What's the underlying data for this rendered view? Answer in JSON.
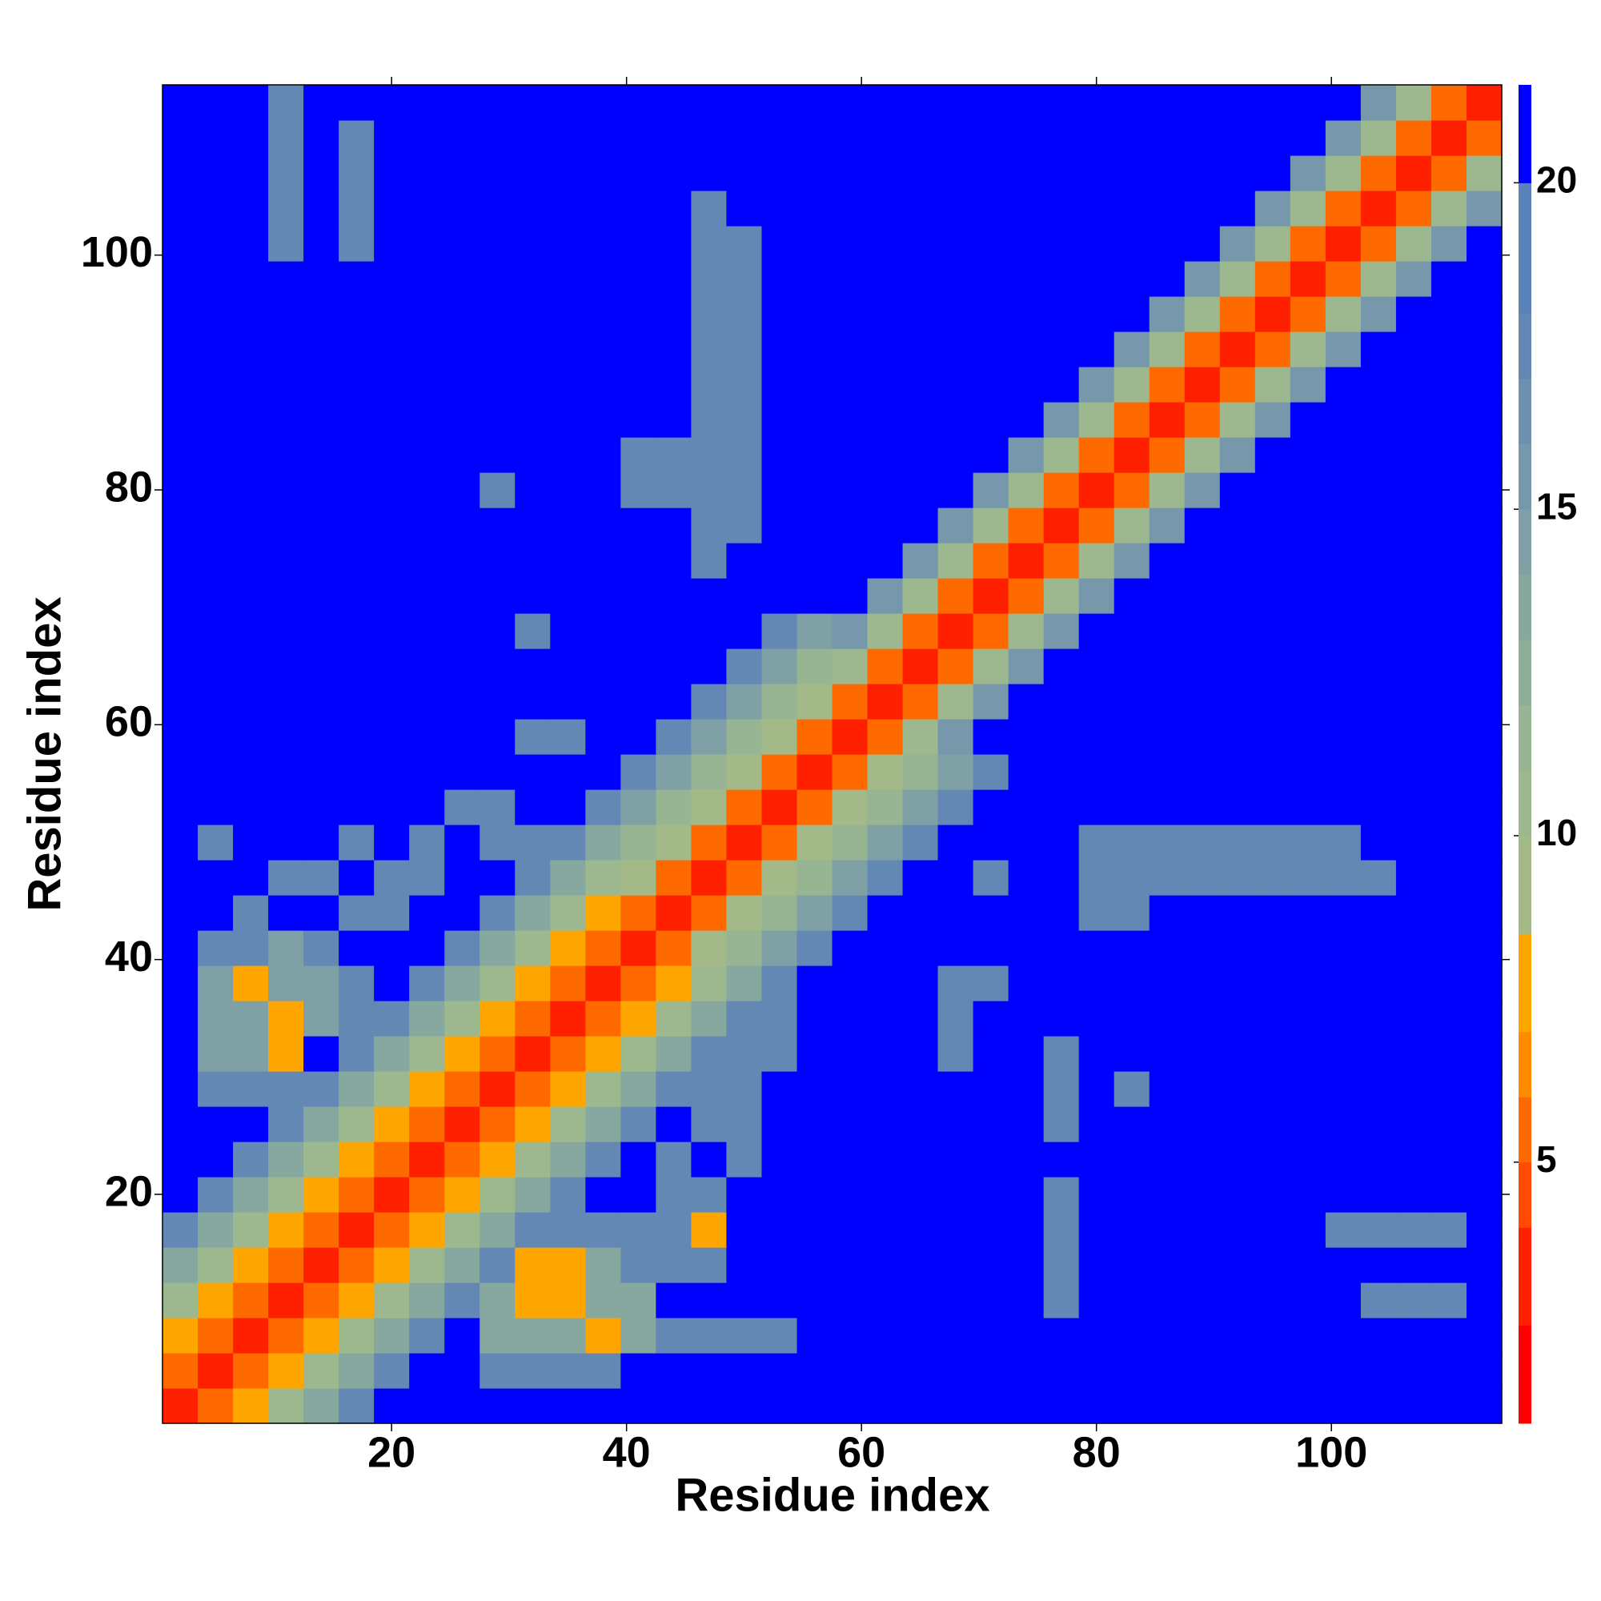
{
  "chart_data": {
    "type": "heatmap",
    "x_label": "Residue index",
    "y_label": "Residue index",
    "xlim": [
      0.5,
      114.5
    ],
    "ylim": [
      0.5,
      114.5
    ],
    "xticks": [
      20,
      40,
      60,
      80,
      100
    ],
    "yticks": [
      20,
      40,
      60,
      80,
      100
    ],
    "zlim": [
      1,
      21.5
    ],
    "colorbar_ticks": [
      5,
      10,
      15,
      20
    ],
    "colorscale": [
      [
        2.5,
        "#ff0000"
      ],
      [
        4,
        "#ff2000"
      ],
      [
        5,
        "#ff4a00"
      ],
      [
        6,
        "#ff6a00"
      ],
      [
        7,
        "#ff8c00"
      ],
      [
        8.5,
        "#ffa500"
      ],
      [
        10,
        "#a3ba88"
      ],
      [
        11,
        "#9db88e"
      ],
      [
        12,
        "#97b493"
      ],
      [
        13,
        "#8fae99"
      ],
      [
        14,
        "#87a89e"
      ],
      [
        15,
        "#7fa0a4"
      ],
      [
        16,
        "#7798aa"
      ],
      [
        17,
        "#6e90b0"
      ],
      [
        18,
        "#6488b4"
      ],
      [
        20,
        "#5a82b8"
      ],
      [
        21.5,
        "#0000ff"
      ]
    ],
    "x": [
      2,
      5,
      8,
      11,
      14,
      17,
      20,
      23,
      26,
      29,
      32,
      35,
      38,
      41,
      44,
      47,
      50,
      53,
      56,
      59,
      62,
      65,
      68,
      71,
      74,
      77,
      80,
      83,
      86,
      89,
      92,
      95,
      98,
      101,
      104,
      107,
      110,
      113
    ],
    "y": [
      2,
      5,
      8,
      11,
      14,
      17,
      20,
      23,
      26,
      29,
      32,
      35,
      38,
      41,
      44,
      47,
      50,
      53,
      56,
      59,
      62,
      65,
      68,
      71,
      74,
      77,
      80,
      83,
      86,
      89,
      92,
      95,
      98,
      101,
      104,
      107,
      110,
      113
    ],
    "z": [
      [
        3,
        6,
        8,
        11,
        14,
        18,
        21,
        21,
        21,
        21,
        21,
        21,
        21,
        21,
        21,
        21,
        21,
        21,
        21,
        21,
        21,
        21,
        21,
        21,
        21,
        21,
        21,
        21,
        21,
        21,
        21,
        21,
        21,
        21,
        21,
        21,
        21,
        21
      ],
      [
        6,
        3,
        6,
        8,
        11,
        14,
        18,
        21,
        21,
        18,
        18,
        18,
        18,
        21,
        21,
        21,
        21,
        21,
        21,
        21,
        21,
        21,
        21,
        21,
        21,
        21,
        21,
        21,
        21,
        21,
        21,
        21,
        21,
        21,
        21,
        21,
        21,
        21
      ],
      [
        8,
        6,
        3,
        6,
        8,
        11,
        14,
        18,
        21,
        14,
        14,
        14,
        8,
        14,
        18,
        18,
        18,
        18,
        21,
        21,
        21,
        21,
        21,
        21,
        21,
        21,
        21,
        21,
        21,
        21,
        21,
        21,
        21,
        21,
        21,
        21,
        21,
        21
      ],
      [
        11,
        8,
        6,
        3,
        6,
        8,
        11,
        14,
        18,
        14,
        8,
        8,
        14,
        14,
        21,
        21,
        21,
        21,
        21,
        21,
        21,
        21,
        21,
        21,
        21,
        18,
        21,
        21,
        21,
        21,
        21,
        21,
        21,
        21,
        18,
        18,
        18,
        21
      ],
      [
        14,
        11,
        8,
        6,
        3,
        6,
        8,
        11,
        14,
        18,
        8,
        8,
        14,
        18,
        18,
        18,
        21,
        21,
        21,
        21,
        21,
        21,
        21,
        21,
        21,
        18,
        21,
        21,
        21,
        21,
        21,
        21,
        21,
        21,
        21,
        21,
        21,
        21
      ],
      [
        18,
        14,
        11,
        8,
        6,
        3,
        6,
        8,
        11,
        14,
        18,
        18,
        18,
        18,
        18,
        8,
        21,
        21,
        21,
        21,
        21,
        21,
        21,
        21,
        21,
        18,
        21,
        21,
        21,
        21,
        21,
        21,
        21,
        18,
        18,
        18,
        18,
        21
      ],
      [
        21,
        18,
        14,
        11,
        8,
        6,
        3,
        6,
        8,
        11,
        14,
        18,
        21,
        21,
        18,
        18,
        21,
        21,
        21,
        21,
        21,
        21,
        21,
        21,
        21,
        18,
        21,
        21,
        21,
        21,
        21,
        21,
        21,
        21,
        21,
        21,
        21,
        21
      ],
      [
        21,
        21,
        18,
        14,
        11,
        8,
        6,
        3,
        6,
        8,
        11,
        14,
        18,
        21,
        18,
        21,
        18,
        21,
        21,
        21,
        21,
        21,
        21,
        21,
        21,
        21,
        21,
        21,
        21,
        21,
        21,
        21,
        21,
        21,
        21,
        21,
        21,
        21
      ],
      [
        21,
        21,
        21,
        18,
        14,
        11,
        8,
        6,
        3,
        6,
        8,
        11,
        14,
        18,
        21,
        18,
        18,
        21,
        21,
        21,
        21,
        21,
        21,
        21,
        21,
        18,
        21,
        21,
        21,
        21,
        21,
        21,
        21,
        21,
        21,
        21,
        21,
        21
      ],
      [
        21,
        18,
        18,
        18,
        18,
        14,
        11,
        8,
        6,
        3,
        6,
        8,
        11,
        14,
        18,
        18,
        18,
        21,
        21,
        21,
        21,
        21,
        21,
        21,
        21,
        18,
        21,
        18,
        21,
        21,
        21,
        21,
        21,
        21,
        21,
        21,
        21,
        21
      ],
      [
        21,
        15,
        15,
        8,
        21,
        18,
        14,
        11,
        8,
        6,
        3,
        6,
        8,
        11,
        14,
        18,
        18,
        18,
        21,
        21,
        21,
        21,
        18,
        21,
        21,
        18,
        21,
        21,
        21,
        21,
        21,
        21,
        21,
        21,
        21,
        21,
        21,
        21
      ],
      [
        21,
        15,
        15,
        8,
        15,
        18,
        18,
        14,
        11,
        8,
        6,
        3,
        6,
        8,
        11,
        14,
        18,
        18,
        21,
        21,
        21,
        21,
        18,
        21,
        21,
        21,
        21,
        21,
        21,
        21,
        21,
        21,
        21,
        21,
        21,
        21,
        21,
        21
      ],
      [
        21,
        15,
        8,
        15,
        15,
        18,
        21,
        18,
        14,
        11,
        8,
        6,
        3,
        6,
        8,
        11,
        14,
        18,
        21,
        21,
        21,
        21,
        18,
        18,
        21,
        21,
        21,
        21,
        21,
        21,
        21,
        21,
        21,
        21,
        21,
        21,
        21,
        21
      ],
      [
        21,
        18,
        18,
        15,
        18,
        21,
        21,
        21,
        18,
        14,
        11,
        8,
        6,
        3,
        6,
        10,
        12,
        15,
        18,
        21,
        21,
        21,
        21,
        21,
        21,
        21,
        21,
        21,
        21,
        21,
        21,
        21,
        21,
        21,
        21,
        21,
        21,
        21
      ],
      [
        21,
        21,
        18,
        21,
        21,
        18,
        18,
        21,
        21,
        18,
        14,
        11,
        8,
        6,
        3,
        6,
        10,
        12,
        15,
        18,
        21,
        21,
        21,
        21,
        21,
        21,
        18,
        18,
        21,
        21,
        21,
        21,
        21,
        21,
        21,
        21,
        21,
        21
      ],
      [
        21,
        21,
        21,
        18,
        18,
        21,
        18,
        18,
        21,
        21,
        18,
        14,
        11,
        10,
        6,
        3,
        6,
        10,
        12,
        15,
        18,
        21,
        21,
        18,
        21,
        21,
        18,
        18,
        18,
        18,
        18,
        18,
        18,
        18,
        18,
        21,
        21,
        21
      ],
      [
        21,
        18,
        21,
        21,
        21,
        18,
        21,
        18,
        21,
        18,
        18,
        18,
        14,
        12,
        10,
        6,
        3,
        6,
        10,
        12,
        15,
        18,
        21,
        21,
        21,
        21,
        18,
        18,
        18,
        18,
        18,
        18,
        18,
        18,
        21,
        21,
        21,
        21
      ],
      [
        21,
        21,
        21,
        21,
        21,
        21,
        21,
        21,
        18,
        18,
        21,
        21,
        18,
        15,
        12,
        10,
        6,
        3,
        6,
        10,
        12,
        15,
        18,
        21,
        21,
        21,
        21,
        21,
        21,
        21,
        21,
        21,
        21,
        21,
        21,
        21,
        21,
        21
      ],
      [
        21,
        21,
        21,
        21,
        21,
        21,
        21,
        21,
        21,
        21,
        21,
        21,
        21,
        18,
        15,
        12,
        10,
        6,
        3,
        6,
        10,
        12,
        15,
        18,
        21,
        21,
        21,
        21,
        21,
        21,
        21,
        21,
        21,
        21,
        21,
        21,
        21,
        21
      ],
      [
        21,
        21,
        21,
        21,
        21,
        21,
        21,
        21,
        21,
        21,
        18,
        18,
        21,
        21,
        18,
        15,
        12,
        10,
        6,
        3,
        6,
        11,
        16,
        21,
        21,
        21,
        21,
        21,
        21,
        21,
        21,
        21,
        21,
        21,
        21,
        21,
        21,
        21
      ],
      [
        21,
        21,
        21,
        21,
        21,
        21,
        21,
        21,
        21,
        21,
        21,
        21,
        21,
        21,
        21,
        18,
        15,
        12,
        10,
        6,
        3,
        6,
        11,
        16,
        21,
        21,
        21,
        21,
        21,
        21,
        21,
        21,
        21,
        21,
        21,
        21,
        21,
        21
      ],
      [
        21,
        21,
        21,
        21,
        21,
        21,
        21,
        21,
        21,
        21,
        21,
        21,
        21,
        21,
        21,
        21,
        18,
        15,
        12,
        11,
        6,
        3,
        6,
        11,
        16,
        21,
        21,
        21,
        21,
        21,
        21,
        21,
        21,
        21,
        21,
        21,
        21,
        21
      ],
      [
        21,
        21,
        21,
        21,
        21,
        21,
        21,
        21,
        21,
        21,
        18,
        21,
        21,
        21,
        21,
        21,
        21,
        18,
        15,
        16,
        11,
        6,
        3,
        6,
        11,
        16,
        21,
        21,
        21,
        21,
        21,
        21,
        21,
        21,
        21,
        21,
        21,
        21
      ],
      [
        21,
        21,
        21,
        21,
        21,
        21,
        21,
        21,
        21,
        21,
        21,
        21,
        21,
        21,
        21,
        21,
        21,
        21,
        21,
        21,
        16,
        11,
        6,
        3,
        6,
        11,
        16,
        21,
        21,
        21,
        21,
        21,
        21,
        21,
        21,
        21,
        21,
        21
      ],
      [
        21,
        21,
        21,
        21,
        21,
        21,
        21,
        21,
        21,
        21,
        21,
        21,
        21,
        21,
        21,
        18,
        21,
        21,
        21,
        21,
        21,
        16,
        11,
        6,
        3,
        6,
        11,
        16,
        21,
        21,
        21,
        21,
        21,
        21,
        21,
        21,
        21,
        21
      ],
      [
        21,
        21,
        21,
        21,
        21,
        21,
        21,
        21,
        21,
        21,
        21,
        21,
        21,
        21,
        21,
        18,
        18,
        21,
        21,
        21,
        21,
        21,
        16,
        11,
        6,
        3,
        6,
        11,
        16,
        21,
        21,
        21,
        21,
        21,
        21,
        21,
        21,
        21
      ],
      [
        21,
        21,
        21,
        21,
        21,
        21,
        21,
        21,
        21,
        18,
        21,
        21,
        21,
        18,
        18,
        18,
        18,
        21,
        21,
        21,
        21,
        21,
        21,
        16,
        11,
        6,
        3,
        6,
        11,
        16,
        21,
        21,
        21,
        21,
        21,
        21,
        21,
        21
      ],
      [
        21,
        21,
        21,
        21,
        21,
        21,
        21,
        21,
        21,
        21,
        21,
        21,
        21,
        18,
        18,
        18,
        18,
        21,
        21,
        21,
        21,
        21,
        21,
        21,
        16,
        11,
        6,
        3,
        6,
        11,
        16,
        21,
        21,
        21,
        21,
        21,
        21,
        21
      ],
      [
        21,
        21,
        21,
        21,
        21,
        21,
        21,
        21,
        21,
        21,
        21,
        21,
        21,
        21,
        21,
        18,
        18,
        21,
        21,
        21,
        21,
        21,
        21,
        21,
        21,
        16,
        11,
        6,
        3,
        6,
        11,
        16,
        21,
        21,
        21,
        21,
        21,
        21
      ],
      [
        21,
        21,
        21,
        21,
        21,
        21,
        21,
        21,
        21,
        21,
        21,
        21,
        21,
        21,
        21,
        18,
        18,
        21,
        21,
        21,
        21,
        21,
        21,
        21,
        21,
        21,
        16,
        11,
        6,
        3,
        6,
        11,
        16,
        21,
        21,
        21,
        21,
        21
      ],
      [
        21,
        21,
        21,
        21,
        21,
        21,
        21,
        21,
        21,
        21,
        21,
        21,
        21,
        21,
        21,
        18,
        18,
        21,
        21,
        21,
        21,
        21,
        21,
        21,
        21,
        21,
        21,
        16,
        11,
        6,
        3,
        6,
        11,
        16,
        21,
        21,
        21,
        21
      ],
      [
        21,
        21,
        21,
        21,
        21,
        21,
        21,
        21,
        21,
        21,
        21,
        21,
        21,
        21,
        21,
        18,
        18,
        21,
        21,
        21,
        21,
        21,
        21,
        21,
        21,
        21,
        21,
        21,
        16,
        11,
        6,
        3,
        6,
        11,
        16,
        21,
        21,
        21
      ],
      [
        21,
        21,
        21,
        21,
        21,
        21,
        21,
        21,
        21,
        21,
        21,
        21,
        21,
        21,
        21,
        18,
        18,
        21,
        21,
        21,
        21,
        21,
        21,
        21,
        21,
        21,
        21,
        21,
        21,
        16,
        11,
        6,
        3,
        6,
        11,
        16,
        21,
        21
      ],
      [
        21,
        21,
        21,
        18,
        21,
        18,
        21,
        21,
        21,
        21,
        21,
        21,
        21,
        21,
        21,
        18,
        18,
        21,
        21,
        21,
        21,
        21,
        21,
        21,
        21,
        21,
        21,
        21,
        21,
        21,
        16,
        11,
        6,
        3,
        6,
        11,
        16,
        21
      ],
      [
        21,
        21,
        21,
        18,
        21,
        18,
        21,
        21,
        21,
        21,
        21,
        21,
        21,
        21,
        21,
        18,
        21,
        21,
        21,
        21,
        21,
        21,
        21,
        21,
        21,
        21,
        21,
        21,
        21,
        21,
        21,
        16,
        11,
        6,
        3,
        6,
        11,
        16
      ],
      [
        21,
        21,
        21,
        18,
        21,
        18,
        21,
        21,
        21,
        21,
        21,
        21,
        21,
        21,
        21,
        21,
        21,
        21,
        21,
        21,
        21,
        21,
        21,
        21,
        21,
        21,
        21,
        21,
        21,
        21,
        21,
        21,
        16,
        11,
        6,
        3,
        6,
        11
      ],
      [
        21,
        21,
        21,
        18,
        21,
        18,
        21,
        21,
        21,
        21,
        21,
        21,
        21,
        21,
        21,
        21,
        21,
        21,
        21,
        21,
        21,
        21,
        21,
        21,
        21,
        21,
        21,
        21,
        21,
        21,
        21,
        21,
        21,
        16,
        11,
        6,
        3,
        6
      ],
      [
        21,
        21,
        21,
        18,
        21,
        21,
        21,
        21,
        21,
        21,
        21,
        21,
        21,
        21,
        21,
        21,
        21,
        21,
        21,
        21,
        21,
        21,
        21,
        21,
        21,
        21,
        21,
        21,
        21,
        21,
        21,
        21,
        21,
        21,
        16,
        11,
        6,
        3
      ]
    ]
  }
}
